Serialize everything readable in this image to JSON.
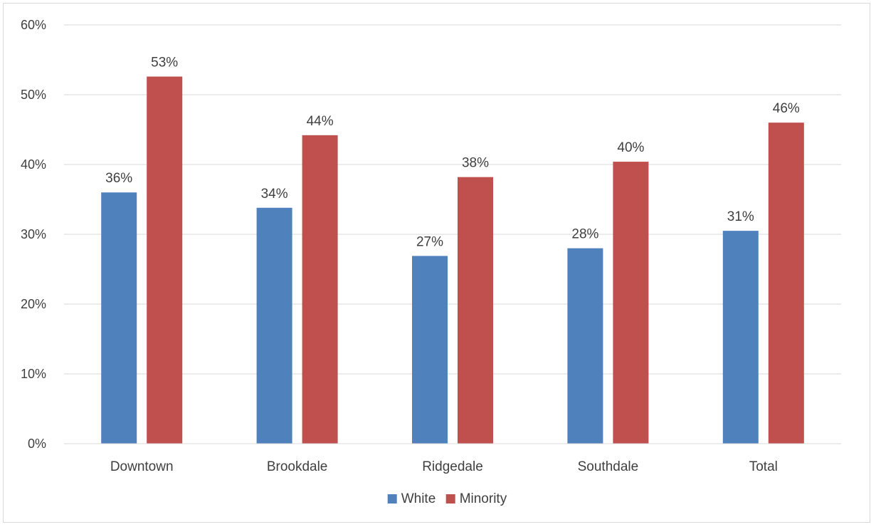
{
  "chart_data": {
    "type": "bar",
    "categories": [
      "Downtown",
      "Brookdale",
      "Ridgedale",
      "Southdale",
      "Total"
    ],
    "series": [
      {
        "name": "White",
        "color": "#4f81bd",
        "values": [
          36,
          33.8,
          26.9,
          28,
          30.5
        ],
        "labels": [
          "36%",
          "34%",
          "27%",
          "28%",
          "31%"
        ]
      },
      {
        "name": "Minority",
        "color": "#c0504d",
        "values": [
          52.6,
          44.2,
          38.2,
          40.4,
          46
        ],
        "labels": [
          "53%",
          "44%",
          "38%",
          "40%",
          "46%"
        ]
      }
    ],
    "title": "",
    "xlabel": "",
    "ylabel": "",
    "ylim": [
      0,
      60
    ],
    "yticks": [
      0,
      10,
      20,
      30,
      40,
      50,
      60
    ],
    "ytick_labels": [
      "0%",
      "10%",
      "20%",
      "30%",
      "40%",
      "50%",
      "60%"
    ],
    "grid": true,
    "legend_position": "bottom"
  }
}
